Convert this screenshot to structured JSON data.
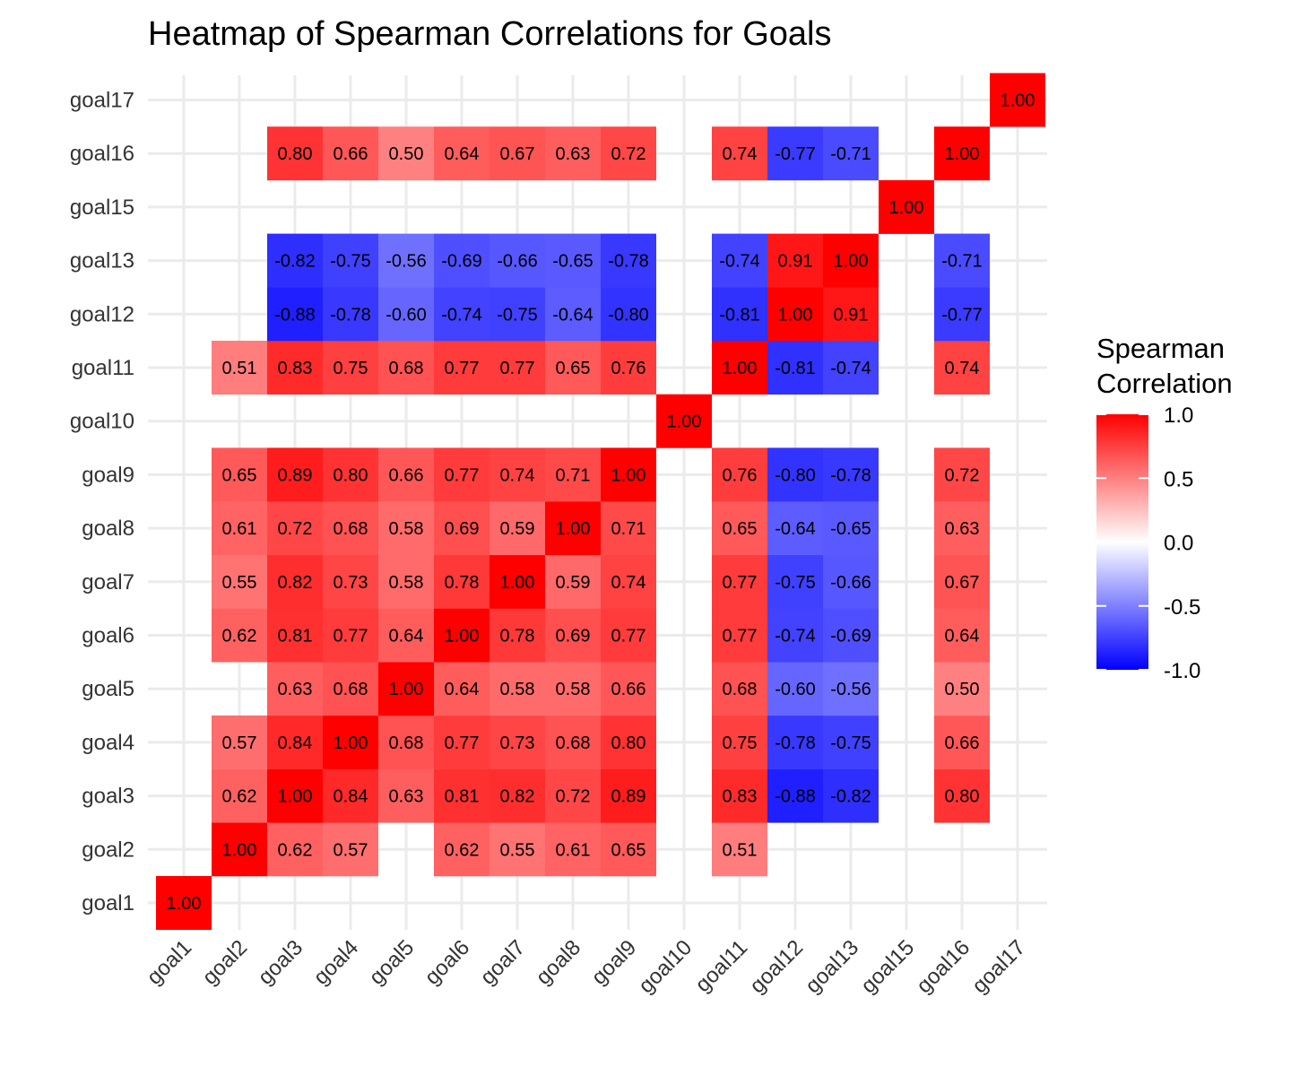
{
  "chart_data": {
    "type": "heatmap",
    "title": "Heatmap of Spearman Correlations for Goals",
    "xlabel": "",
    "ylabel": "",
    "labels": [
      "goal1",
      "goal2",
      "goal3",
      "goal4",
      "goal5",
      "goal6",
      "goal7",
      "goal8",
      "goal9",
      "goal10",
      "goal11",
      "goal12",
      "goal13",
      "goal15",
      "goal16",
      "goal17"
    ],
    "cells": [
      {
        "x": "goal1",
        "y": "goal1",
        "value": 1.0,
        "label": "1.00"
      },
      {
        "x": "goal2",
        "y": "goal2",
        "value": 1.0,
        "label": "1.00"
      },
      {
        "x": "goal3",
        "y": "goal2",
        "value": 0.62,
        "label": "0.62"
      },
      {
        "x": "goal4",
        "y": "goal2",
        "value": 0.57,
        "label": "0.57"
      },
      {
        "x": "goal6",
        "y": "goal2",
        "value": 0.62,
        "label": "0.62"
      },
      {
        "x": "goal7",
        "y": "goal2",
        "value": 0.55,
        "label": "0.55"
      },
      {
        "x": "goal8",
        "y": "goal2",
        "value": 0.61,
        "label": "0.61"
      },
      {
        "x": "goal9",
        "y": "goal2",
        "value": 0.65,
        "label": "0.65"
      },
      {
        "x": "goal11",
        "y": "goal2",
        "value": 0.51,
        "label": "0.51"
      },
      {
        "x": "goal2",
        "y": "goal3",
        "value": 0.62,
        "label": "0.62"
      },
      {
        "x": "goal3",
        "y": "goal3",
        "value": 1.0,
        "label": "1.00"
      },
      {
        "x": "goal4",
        "y": "goal3",
        "value": 0.84,
        "label": "0.84"
      },
      {
        "x": "goal5",
        "y": "goal3",
        "value": 0.63,
        "label": "0.63"
      },
      {
        "x": "goal6",
        "y": "goal3",
        "value": 0.81,
        "label": "0.81"
      },
      {
        "x": "goal7",
        "y": "goal3",
        "value": 0.82,
        "label": "0.82"
      },
      {
        "x": "goal8",
        "y": "goal3",
        "value": 0.72,
        "label": "0.72"
      },
      {
        "x": "goal9",
        "y": "goal3",
        "value": 0.89,
        "label": "0.89"
      },
      {
        "x": "goal11",
        "y": "goal3",
        "value": 0.83,
        "label": "0.83"
      },
      {
        "x": "goal12",
        "y": "goal3",
        "value": -0.88,
        "label": "-0.88"
      },
      {
        "x": "goal13",
        "y": "goal3",
        "value": -0.82,
        "label": "-0.82"
      },
      {
        "x": "goal16",
        "y": "goal3",
        "value": 0.8,
        "label": "0.80"
      },
      {
        "x": "goal2",
        "y": "goal4",
        "value": 0.57,
        "label": "0.57"
      },
      {
        "x": "goal3",
        "y": "goal4",
        "value": 0.84,
        "label": "0.84"
      },
      {
        "x": "goal4",
        "y": "goal4",
        "value": 1.0,
        "label": "1.00"
      },
      {
        "x": "goal5",
        "y": "goal4",
        "value": 0.68,
        "label": "0.68"
      },
      {
        "x": "goal6",
        "y": "goal4",
        "value": 0.77,
        "label": "0.77"
      },
      {
        "x": "goal7",
        "y": "goal4",
        "value": 0.73,
        "label": "0.73"
      },
      {
        "x": "goal8",
        "y": "goal4",
        "value": 0.68,
        "label": "0.68"
      },
      {
        "x": "goal9",
        "y": "goal4",
        "value": 0.8,
        "label": "0.80"
      },
      {
        "x": "goal11",
        "y": "goal4",
        "value": 0.75,
        "label": "0.75"
      },
      {
        "x": "goal12",
        "y": "goal4",
        "value": -0.78,
        "label": "-0.78"
      },
      {
        "x": "goal13",
        "y": "goal4",
        "value": -0.75,
        "label": "-0.75"
      },
      {
        "x": "goal16",
        "y": "goal4",
        "value": 0.66,
        "label": "0.66"
      },
      {
        "x": "goal3",
        "y": "goal5",
        "value": 0.63,
        "label": "0.63"
      },
      {
        "x": "goal4",
        "y": "goal5",
        "value": 0.68,
        "label": "0.68"
      },
      {
        "x": "goal5",
        "y": "goal5",
        "value": 1.0,
        "label": "1.00"
      },
      {
        "x": "goal6",
        "y": "goal5",
        "value": 0.64,
        "label": "0.64"
      },
      {
        "x": "goal7",
        "y": "goal5",
        "value": 0.58,
        "label": "0.58"
      },
      {
        "x": "goal8",
        "y": "goal5",
        "value": 0.58,
        "label": "0.58"
      },
      {
        "x": "goal9",
        "y": "goal5",
        "value": 0.66,
        "label": "0.66"
      },
      {
        "x": "goal11",
        "y": "goal5",
        "value": 0.68,
        "label": "0.68"
      },
      {
        "x": "goal12",
        "y": "goal5",
        "value": -0.6,
        "label": "-0.60"
      },
      {
        "x": "goal13",
        "y": "goal5",
        "value": -0.56,
        "label": "-0.56"
      },
      {
        "x": "goal16",
        "y": "goal5",
        "value": 0.5,
        "label": "0.50"
      },
      {
        "x": "goal2",
        "y": "goal6",
        "value": 0.62,
        "label": "0.62"
      },
      {
        "x": "goal3",
        "y": "goal6",
        "value": 0.81,
        "label": "0.81"
      },
      {
        "x": "goal4",
        "y": "goal6",
        "value": 0.77,
        "label": "0.77"
      },
      {
        "x": "goal5",
        "y": "goal6",
        "value": 0.64,
        "label": "0.64"
      },
      {
        "x": "goal6",
        "y": "goal6",
        "value": 1.0,
        "label": "1.00"
      },
      {
        "x": "goal7",
        "y": "goal6",
        "value": 0.78,
        "label": "0.78"
      },
      {
        "x": "goal8",
        "y": "goal6",
        "value": 0.69,
        "label": "0.69"
      },
      {
        "x": "goal9",
        "y": "goal6",
        "value": 0.77,
        "label": "0.77"
      },
      {
        "x": "goal11",
        "y": "goal6",
        "value": 0.77,
        "label": "0.77"
      },
      {
        "x": "goal12",
        "y": "goal6",
        "value": -0.74,
        "label": "-0.74"
      },
      {
        "x": "goal13",
        "y": "goal6",
        "value": -0.69,
        "label": "-0.69"
      },
      {
        "x": "goal16",
        "y": "goal6",
        "value": 0.64,
        "label": "0.64"
      },
      {
        "x": "goal2",
        "y": "goal7",
        "value": 0.55,
        "label": "0.55"
      },
      {
        "x": "goal3",
        "y": "goal7",
        "value": 0.82,
        "label": "0.82"
      },
      {
        "x": "goal4",
        "y": "goal7",
        "value": 0.73,
        "label": "0.73"
      },
      {
        "x": "goal5",
        "y": "goal7",
        "value": 0.58,
        "label": "0.58"
      },
      {
        "x": "goal6",
        "y": "goal7",
        "value": 0.78,
        "label": "0.78"
      },
      {
        "x": "goal7",
        "y": "goal7",
        "value": 1.0,
        "label": "1.00"
      },
      {
        "x": "goal8",
        "y": "goal7",
        "value": 0.59,
        "label": "0.59"
      },
      {
        "x": "goal9",
        "y": "goal7",
        "value": 0.74,
        "label": "0.74"
      },
      {
        "x": "goal11",
        "y": "goal7",
        "value": 0.77,
        "label": "0.77"
      },
      {
        "x": "goal12",
        "y": "goal7",
        "value": -0.75,
        "label": "-0.75"
      },
      {
        "x": "goal13",
        "y": "goal7",
        "value": -0.66,
        "label": "-0.66"
      },
      {
        "x": "goal16",
        "y": "goal7",
        "value": 0.67,
        "label": "0.67"
      },
      {
        "x": "goal2",
        "y": "goal8",
        "value": 0.61,
        "label": "0.61"
      },
      {
        "x": "goal3",
        "y": "goal8",
        "value": 0.72,
        "label": "0.72"
      },
      {
        "x": "goal4",
        "y": "goal8",
        "value": 0.68,
        "label": "0.68"
      },
      {
        "x": "goal5",
        "y": "goal8",
        "value": 0.58,
        "label": "0.58"
      },
      {
        "x": "goal6",
        "y": "goal8",
        "value": 0.69,
        "label": "0.69"
      },
      {
        "x": "goal7",
        "y": "goal8",
        "value": 0.59,
        "label": "0.59"
      },
      {
        "x": "goal8",
        "y": "goal8",
        "value": 1.0,
        "label": "1.00"
      },
      {
        "x": "goal9",
        "y": "goal8",
        "value": 0.71,
        "label": "0.71"
      },
      {
        "x": "goal11",
        "y": "goal8",
        "value": 0.65,
        "label": "0.65"
      },
      {
        "x": "goal12",
        "y": "goal8",
        "value": -0.64,
        "label": "-0.64"
      },
      {
        "x": "goal13",
        "y": "goal8",
        "value": -0.65,
        "label": "-0.65"
      },
      {
        "x": "goal16",
        "y": "goal8",
        "value": 0.63,
        "label": "0.63"
      },
      {
        "x": "goal2",
        "y": "goal9",
        "value": 0.65,
        "label": "0.65"
      },
      {
        "x": "goal3",
        "y": "goal9",
        "value": 0.89,
        "label": "0.89"
      },
      {
        "x": "goal4",
        "y": "goal9",
        "value": 0.8,
        "label": "0.80"
      },
      {
        "x": "goal5",
        "y": "goal9",
        "value": 0.66,
        "label": "0.66"
      },
      {
        "x": "goal6",
        "y": "goal9",
        "value": 0.77,
        "label": "0.77"
      },
      {
        "x": "goal7",
        "y": "goal9",
        "value": 0.74,
        "label": "0.74"
      },
      {
        "x": "goal8",
        "y": "goal9",
        "value": 0.71,
        "label": "0.71"
      },
      {
        "x": "goal9",
        "y": "goal9",
        "value": 1.0,
        "label": "1.00"
      },
      {
        "x": "goal11",
        "y": "goal9",
        "value": 0.76,
        "label": "0.76"
      },
      {
        "x": "goal12",
        "y": "goal9",
        "value": -0.8,
        "label": "-0.80"
      },
      {
        "x": "goal13",
        "y": "goal9",
        "value": -0.78,
        "label": "-0.78"
      },
      {
        "x": "goal16",
        "y": "goal9",
        "value": 0.72,
        "label": "0.72"
      },
      {
        "x": "goal10",
        "y": "goal10",
        "value": 1.0,
        "label": "1.00"
      },
      {
        "x": "goal2",
        "y": "goal11",
        "value": 0.51,
        "label": "0.51"
      },
      {
        "x": "goal3",
        "y": "goal11",
        "value": 0.83,
        "label": "0.83"
      },
      {
        "x": "goal4",
        "y": "goal11",
        "value": 0.75,
        "label": "0.75"
      },
      {
        "x": "goal5",
        "y": "goal11",
        "value": 0.68,
        "label": "0.68"
      },
      {
        "x": "goal6",
        "y": "goal11",
        "value": 0.77,
        "label": "0.77"
      },
      {
        "x": "goal7",
        "y": "goal11",
        "value": 0.77,
        "label": "0.77"
      },
      {
        "x": "goal8",
        "y": "goal11",
        "value": 0.65,
        "label": "0.65"
      },
      {
        "x": "goal9",
        "y": "goal11",
        "value": 0.76,
        "label": "0.76"
      },
      {
        "x": "goal11",
        "y": "goal11",
        "value": 1.0,
        "label": "1.00"
      },
      {
        "x": "goal12",
        "y": "goal11",
        "value": -0.81,
        "label": "-0.81"
      },
      {
        "x": "goal13",
        "y": "goal11",
        "value": -0.74,
        "label": "-0.74"
      },
      {
        "x": "goal16",
        "y": "goal11",
        "value": 0.74,
        "label": "0.74"
      },
      {
        "x": "goal3",
        "y": "goal12",
        "value": -0.88,
        "label": "-0.88"
      },
      {
        "x": "goal4",
        "y": "goal12",
        "value": -0.78,
        "label": "-0.78"
      },
      {
        "x": "goal5",
        "y": "goal12",
        "value": -0.6,
        "label": "-0.60"
      },
      {
        "x": "goal6",
        "y": "goal12",
        "value": -0.74,
        "label": "-0.74"
      },
      {
        "x": "goal7",
        "y": "goal12",
        "value": -0.75,
        "label": "-0.75"
      },
      {
        "x": "goal8",
        "y": "goal12",
        "value": -0.64,
        "label": "-0.64"
      },
      {
        "x": "goal9",
        "y": "goal12",
        "value": -0.8,
        "label": "-0.80"
      },
      {
        "x": "goal11",
        "y": "goal12",
        "value": -0.81,
        "label": "-0.81"
      },
      {
        "x": "goal12",
        "y": "goal12",
        "value": 1.0,
        "label": "1.00"
      },
      {
        "x": "goal13",
        "y": "goal12",
        "value": 0.91,
        "label": "0.91"
      },
      {
        "x": "goal16",
        "y": "goal12",
        "value": -0.77,
        "label": "-0.77"
      },
      {
        "x": "goal3",
        "y": "goal13",
        "value": -0.82,
        "label": "-0.82"
      },
      {
        "x": "goal4",
        "y": "goal13",
        "value": -0.75,
        "label": "-0.75"
      },
      {
        "x": "goal5",
        "y": "goal13",
        "value": -0.56,
        "label": "-0.56"
      },
      {
        "x": "goal6",
        "y": "goal13",
        "value": -0.69,
        "label": "-0.69"
      },
      {
        "x": "goal7",
        "y": "goal13",
        "value": -0.66,
        "label": "-0.66"
      },
      {
        "x": "goal8",
        "y": "goal13",
        "value": -0.65,
        "label": "-0.65"
      },
      {
        "x": "goal9",
        "y": "goal13",
        "value": -0.78,
        "label": "-0.78"
      },
      {
        "x": "goal11",
        "y": "goal13",
        "value": -0.74,
        "label": "-0.74"
      },
      {
        "x": "goal12",
        "y": "goal13",
        "value": 0.91,
        "label": "0.91"
      },
      {
        "x": "goal13",
        "y": "goal13",
        "value": 1.0,
        "label": "1.00"
      },
      {
        "x": "goal16",
        "y": "goal13",
        "value": -0.71,
        "label": "-0.71"
      },
      {
        "x": "goal15",
        "y": "goal15",
        "value": 1.0,
        "label": "1.00"
      },
      {
        "x": "goal3",
        "y": "goal16",
        "value": 0.8,
        "label": "0.80"
      },
      {
        "x": "goal4",
        "y": "goal16",
        "value": 0.66,
        "label": "0.66"
      },
      {
        "x": "goal5",
        "y": "goal16",
        "value": 0.5,
        "label": "0.50"
      },
      {
        "x": "goal6",
        "y": "goal16",
        "value": 0.64,
        "label": "0.64"
      },
      {
        "x": "goal7",
        "y": "goal16",
        "value": 0.67,
        "label": "0.67"
      },
      {
        "x": "goal8",
        "y": "goal16",
        "value": 0.63,
        "label": "0.63"
      },
      {
        "x": "goal9",
        "y": "goal16",
        "value": 0.72,
        "label": "0.72"
      },
      {
        "x": "goal11",
        "y": "goal16",
        "value": 0.74,
        "label": "0.74"
      },
      {
        "x": "goal12",
        "y": "goal16",
        "value": -0.77,
        "label": "-0.77"
      },
      {
        "x": "goal13",
        "y": "goal16",
        "value": -0.71,
        "label": "-0.71"
      },
      {
        "x": "goal16",
        "y": "goal16",
        "value": 1.0,
        "label": "1.00"
      },
      {
        "x": "goal17",
        "y": "goal17",
        "value": 1.0,
        "label": "1.00"
      }
    ],
    "legend": {
      "title_lines": [
        "Spearman",
        "Correlation"
      ],
      "position": "right",
      "range": [
        -1.0,
        1.0
      ],
      "ticks": [
        1.0,
        0.5,
        0.0,
        -0.5,
        -1.0
      ],
      "tick_labels": [
        "1.0",
        "0.5",
        "0.0",
        "-0.5",
        "-1.0"
      ]
    },
    "colors": {
      "low": "#0000ff",
      "mid": "#ffffff",
      "high": "#ff0000",
      "grid": "#ebebeb"
    },
    "grid": true
  }
}
